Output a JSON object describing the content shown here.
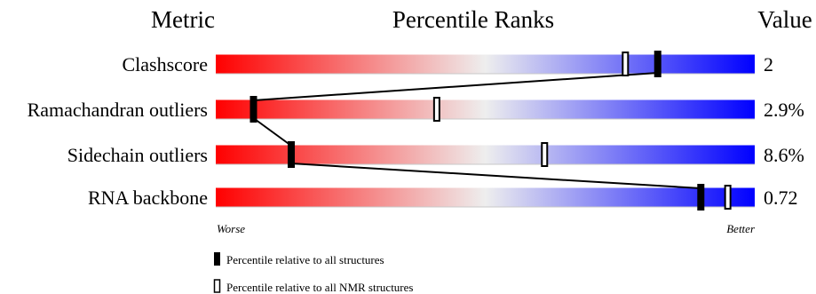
{
  "chart_data": {
    "type": "percentile-slider",
    "headers": {
      "metric": "Metric",
      "percentile": "Percentile Ranks",
      "value": "Value"
    },
    "axis": {
      "min": 0,
      "max": 100,
      "worse_label": "Worse",
      "better_label": "Better"
    },
    "colors": {
      "worse": "#ff0000",
      "mid": "#eeeeee",
      "better": "#0000ff",
      "marker": "#000000"
    },
    "metrics": [
      {
        "name": "Clashscore",
        "value": "2",
        "percentile_all": 82,
        "percentile_nmr": 76
      },
      {
        "name": "Ramachandran outliers",
        "value": "2.9%",
        "percentile_all": 7,
        "percentile_nmr": 41
      },
      {
        "name": "Sidechain outliers",
        "value": "8.6%",
        "percentile_all": 14,
        "percentile_nmr": 61
      },
      {
        "name": "RNA backbone",
        "value": "0.72",
        "percentile_all": 90,
        "percentile_nmr": 95
      }
    ],
    "legend": [
      {
        "marker": "filled",
        "label": "Percentile relative to all structures"
      },
      {
        "marker": "open",
        "label": "Percentile relative to all NMR structures"
      }
    ]
  }
}
